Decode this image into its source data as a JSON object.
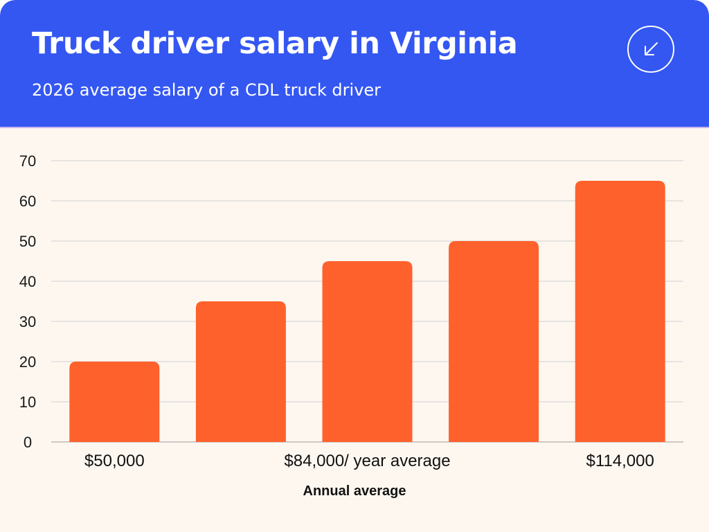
{
  "header": {
    "title": "Truck driver salary in Virginia",
    "subtitle": "2026 average salary of a CDL truck driver",
    "icon": "arrow-down-left-icon"
  },
  "colors": {
    "header_bg": "#3457f2",
    "bar": "#ff612d",
    "background": "#fdf7f0",
    "gridline": "#cfcfcf"
  },
  "chart_data": {
    "type": "bar",
    "categories": [
      "$50,000",
      "",
      "$84,000/ year average",
      "",
      "$114,000"
    ],
    "values": [
      20,
      35,
      45,
      50,
      65
    ],
    "ylim": [
      0,
      70
    ],
    "yticks": [
      0,
      10,
      20,
      30,
      40,
      50,
      60,
      70
    ],
    "xlabel": "Annual average",
    "ylabel": "",
    "grid": true,
    "legend": "none"
  }
}
